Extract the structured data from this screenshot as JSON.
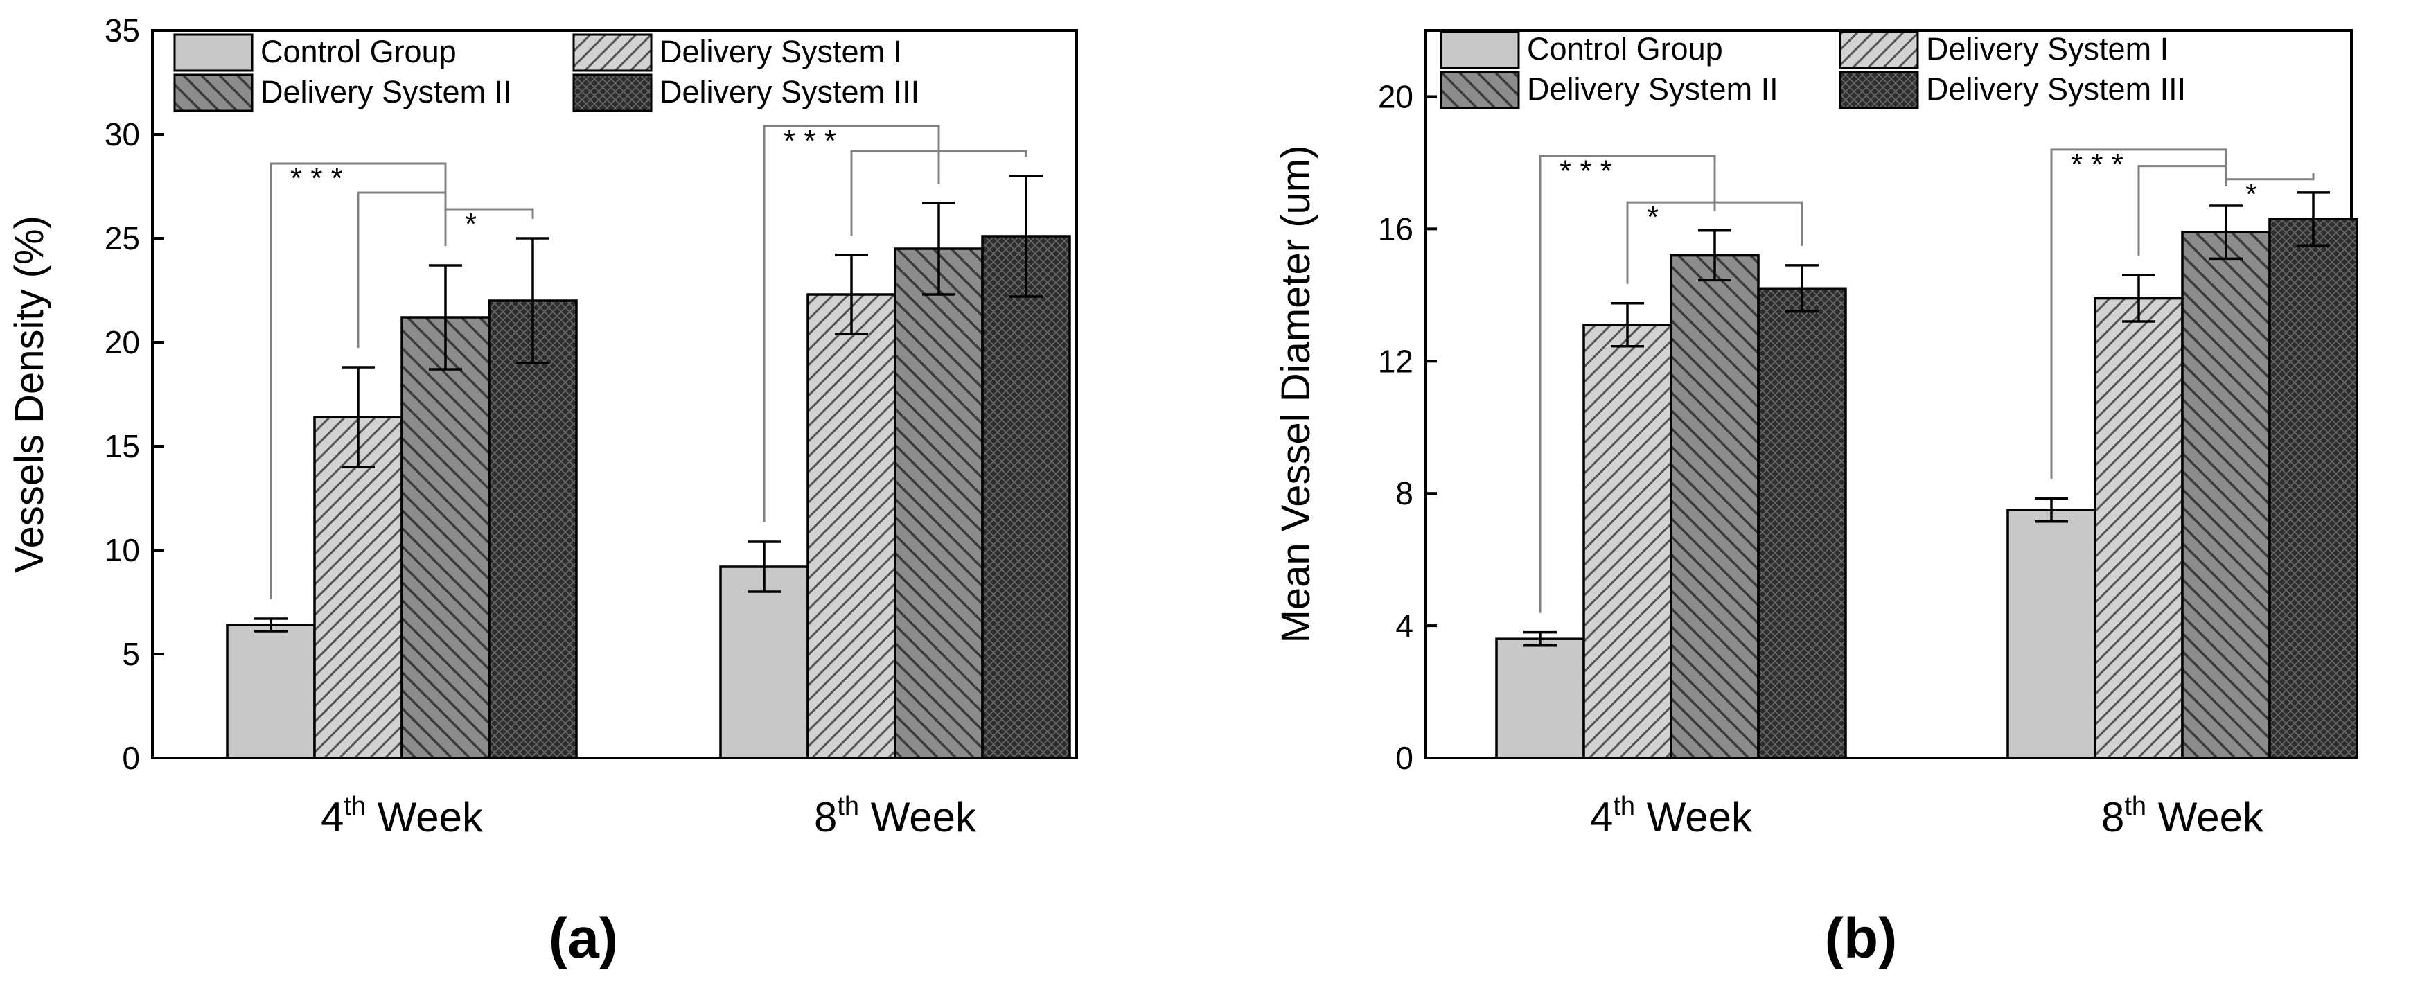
{
  "chart_data": [
    {
      "type": "bar",
      "panel_label": "(a)",
      "ylabel": "Vessels Density (%)",
      "xlabel": "",
      "ylim": [
        0,
        35
      ],
      "yticks": [
        "0",
        "5",
        "10",
        "15",
        "20",
        "25",
        "30",
        "35"
      ],
      "yticks_values": [
        0,
        5,
        10,
        15,
        20,
        25,
        30,
        35
      ],
      "categories": [
        {
          "ordinal": "4",
          "suffix": "th",
          "word": "Week"
        },
        {
          "ordinal": "8",
          "suffix": "th",
          "word": "Week"
        }
      ],
      "series": [
        {
          "name": "Control Group",
          "values": [
            6.4,
            9.2
          ],
          "errors": [
            0.3,
            1.2
          ]
        },
        {
          "name": "Delivery System I",
          "values": [
            16.4,
            22.3
          ],
          "errors": [
            2.4,
            1.9
          ]
        },
        {
          "name": "Delivery System II",
          "values": [
            21.2,
            24.5
          ],
          "errors": [
            2.5,
            2.2
          ]
        },
        {
          "name": "Delivery System III",
          "values": [
            22.0,
            25.1
          ],
          "errors": [
            3.0,
            2.9
          ]
        }
      ],
      "significance": [
        {
          "category": 0,
          "from": 0,
          "to": 2,
          "label": "* * *",
          "level": 28.6
        },
        {
          "category": 0,
          "from": 1,
          "to": 2,
          "label": "",
          "level": 27.2
        },
        {
          "category": 0,
          "from": 2,
          "to": 3,
          "label": "*",
          "level": 26.4
        },
        {
          "category": 1,
          "from": 0,
          "to": 2,
          "label": "* * *",
          "level": 30.4
        },
        {
          "category": 1,
          "from": 1,
          "to": 3,
          "label": "",
          "level": 29.2
        }
      ],
      "legend_position": "top"
    },
    {
      "type": "bar",
      "panel_label": "(b)",
      "ylabel": "Mean Vessel Diameter (um)",
      "xlabel": "",
      "ylim": [
        0,
        22
      ],
      "yticks": [
        "0",
        "4",
        "8",
        "12",
        "16",
        "20"
      ],
      "yticks_values": [
        0,
        4,
        8,
        12,
        16,
        20
      ],
      "categories": [
        {
          "ordinal": "4",
          "suffix": "th",
          "word": "Week"
        },
        {
          "ordinal": "8",
          "suffix": "th",
          "word": "Week"
        }
      ],
      "series": [
        {
          "name": "Control Group",
          "values": [
            3.6,
            7.5
          ],
          "errors": [
            0.2,
            0.35
          ]
        },
        {
          "name": "Delivery System I",
          "values": [
            13.1,
            13.9
          ],
          "errors": [
            0.65,
            0.7
          ]
        },
        {
          "name": "Delivery System II",
          "values": [
            15.2,
            15.9
          ],
          "errors": [
            0.75,
            0.8
          ]
        },
        {
          "name": "Delivery System III",
          "values": [
            14.2,
            16.3
          ],
          "errors": [
            0.7,
            0.8
          ]
        }
      ],
      "significance": [
        {
          "category": 0,
          "from": 0,
          "to": 2,
          "label": "* * *",
          "level": 18.2
        },
        {
          "category": 0,
          "from": 1,
          "to": 3,
          "label": "*",
          "level": 16.8
        },
        {
          "category": 1,
          "from": 0,
          "to": 2,
          "label": "* * *",
          "level": 18.4
        },
        {
          "category": 1,
          "from": 1,
          "to": 2,
          "label": "",
          "level": 17.9
        },
        {
          "category": 1,
          "from": 2,
          "to": 3,
          "label": "*",
          "level": 17.5
        }
      ],
      "legend_position": "top"
    }
  ],
  "colors": {
    "control": "#c8c8c8",
    "ds1": "#d2d2d2",
    "ds2": "#8c8c8c",
    "ds3": "#2d2d2d",
    "axis": "#000000",
    "bracket": "#808080"
  }
}
